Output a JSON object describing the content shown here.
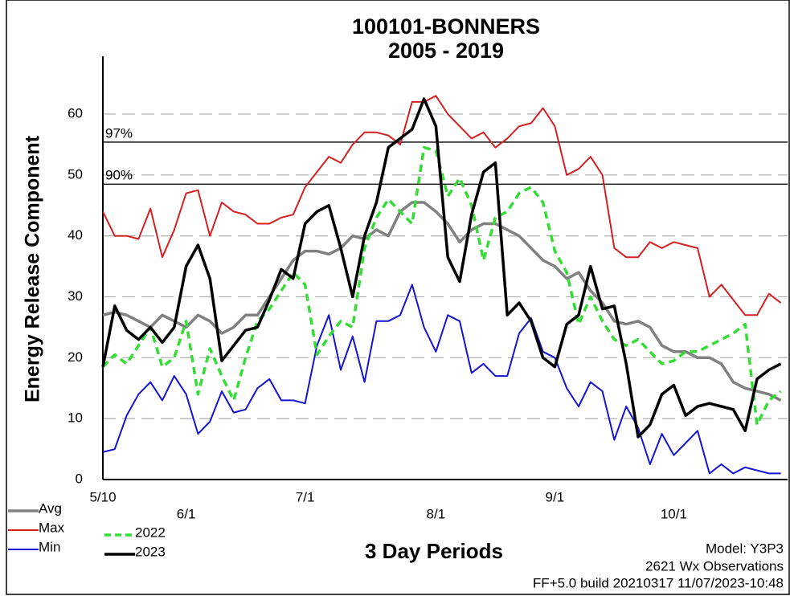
{
  "chart_data": {
    "type": "line",
    "title": "100101-BONNERS",
    "subtitle": "2005 - 2019",
    "y_label": "Energy Release Component",
    "x_label": "3 Day Periods",
    "notes": [
      "Model: Y3P3",
      "2621 Wx Observations",
      "FF+5.0 build 20210317 11/07/2023-10:48"
    ],
    "categories": [
      "5/10",
      null,
      null,
      null,
      null,
      null,
      null,
      "6/1",
      null,
      null,
      null,
      null,
      null,
      null,
      null,
      null,
      null,
      "7/1",
      null,
      null,
      null,
      null,
      null,
      null,
      null,
      null,
      null,
      null,
      "8/1",
      null,
      null,
      null,
      null,
      null,
      null,
      null,
      null,
      null,
      "9/1",
      null,
      null,
      null,
      null,
      null,
      null,
      null,
      null,
      null,
      "10/1",
      null,
      null,
      null,
      null,
      null,
      null,
      null,
      null,
      null
    ],
    "series": [
      {
        "name": "Avg",
        "color": "#808080",
        "values": [
          27,
          27.5,
          27,
          26,
          25,
          27,
          26,
          25,
          27,
          26,
          24,
          25,
          27,
          27,
          30,
          33,
          36,
          37.5,
          37.5,
          37,
          38,
          40,
          39.5,
          41,
          40,
          44,
          45.5,
          45.5,
          44,
          42,
          39,
          41,
          42,
          42,
          41,
          40,
          38,
          36,
          35,
          33,
          34,
          31,
          29,
          26,
          25.5,
          26,
          25,
          22,
          21,
          21,
          20,
          20,
          19,
          16,
          15,
          14.5,
          14,
          13
        ]
      },
      {
        "name": "Max",
        "color": "#d42020",
        "values": [
          44,
          40,
          40,
          39.5,
          44.5,
          36.5,
          41,
          47,
          47.5,
          40,
          45.5,
          44,
          43.5,
          42,
          42,
          43,
          43.5,
          48,
          50.5,
          53,
          52,
          55,
          57,
          57,
          56.5,
          55,
          62,
          62,
          63,
          60,
          58,
          56,
          57,
          54.5,
          56,
          58,
          58.5,
          61,
          58,
          50,
          51,
          53,
          50,
          38,
          36.5,
          36.5,
          39,
          38,
          39,
          38.5,
          38,
          30,
          32,
          29.5,
          27,
          27,
          30.5,
          29
        ]
      },
      {
        "name": "Min",
        "color": "#1414d2",
        "values": [
          4.5,
          5,
          10.5,
          14,
          16,
          13,
          17,
          14,
          7.5,
          9.5,
          14.5,
          11,
          11.5,
          15,
          16.5,
          13,
          13,
          12.5,
          22,
          27,
          18,
          23.5,
          16,
          26,
          26,
          27,
          32,
          25,
          21,
          27,
          26,
          17.5,
          19,
          17,
          17,
          24,
          26.5,
          21,
          20,
          15,
          12,
          16,
          14.5,
          6.5,
          12,
          8.5,
          2.5,
          7.5,
          4,
          6,
          8,
          1,
          2.5,
          1,
          2,
          1.5,
          1,
          1
        ]
      },
      {
        "name": "2022",
        "color": "#33dd33",
        "dashed": true,
        "values": [
          18.5,
          20.5,
          19,
          22,
          25,
          18.5,
          20,
          26,
          14,
          21.5,
          17,
          13,
          20,
          26,
          28,
          31,
          34,
          32,
          20.5,
          23.5,
          26,
          25,
          38,
          43,
          46,
          44,
          42,
          54.5,
          54,
          46.5,
          49.5,
          45,
          36,
          43,
          44,
          47,
          48,
          45.5,
          37.5,
          34,
          25.5,
          30,
          26,
          23,
          22,
          23,
          21,
          19,
          19.5,
          21,
          21,
          22,
          23,
          24,
          25.5,
          9,
          13,
          14.5
        ]
      },
      {
        "name": "2023",
        "color": "#000000",
        "values": [
          18.5,
          28.5,
          24.5,
          23,
          25,
          22.5,
          25,
          35,
          38.5,
          33,
          19.5,
          22,
          24.5,
          25,
          29.5,
          34.5,
          33,
          42,
          44,
          45,
          38,
          30,
          40,
          45.5,
          54.5,
          56,
          57.5,
          62.5,
          58,
          36.5,
          32.5,
          43.5,
          50.5,
          52,
          27,
          29,
          26,
          20,
          18.5,
          25.5,
          27,
          35,
          28,
          28.5,
          19,
          7,
          9,
          14,
          15.5,
          10.5,
          12,
          12.5,
          12,
          11.5,
          8,
          16.5,
          18,
          19
        ]
      }
    ],
    "reference_lines": [
      {
        "label": "97%",
        "value": 55.4
      },
      {
        "label": "90%",
        "value": 48.5
      }
    ],
    "ylim": [
      0,
      69.5
    ],
    "yticks": [
      0,
      10,
      20,
      30,
      40,
      50,
      60
    ],
    "grid": true
  }
}
